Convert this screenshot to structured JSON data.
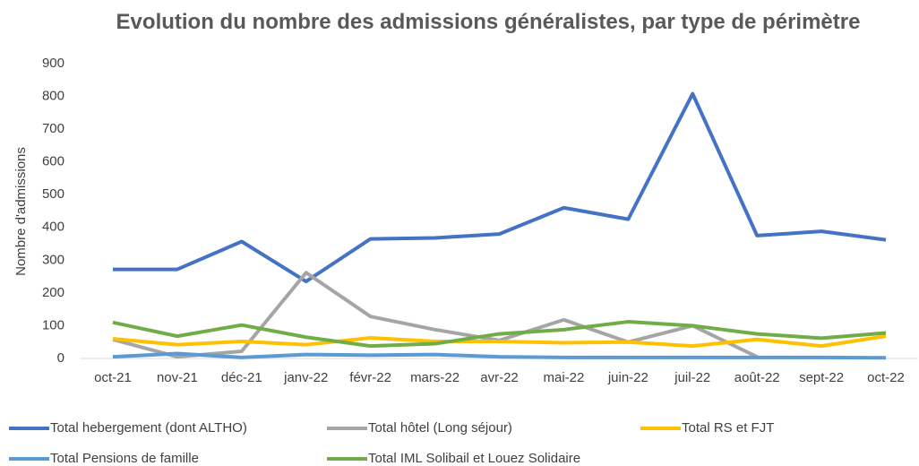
{
  "chart_data": {
    "type": "line",
    "title": "Evolution du nombre des admissions généralistes, par type de périmètre",
    "y_label": "Nombre d'admissions",
    "categories": [
      "oct-21",
      "nov-21",
      "déc-21",
      "janv-22",
      "févr-22",
      "mars-22",
      "avr-22",
      "mai-22",
      "juin-22",
      "juil-22",
      "août-22",
      "sept-22",
      "oct-22"
    ],
    "series": [
      {
        "name": "Total hebergement (dont ALTHO)",
        "color": "#4472c4",
        "values": [
          272,
          272,
          357,
          235,
          365,
          368,
          380,
          460,
          425,
          808,
          375,
          388,
          362
        ]
      },
      {
        "name": "Total hôtel (Long séjour)",
        "color": "#a5a5a5",
        "values": [
          58,
          5,
          22,
          262,
          128,
          88,
          55,
          118,
          50,
          100,
          5,
          null,
          null
        ]
      },
      {
        "name": "Total RS et FJT",
        "color": "#ffc000",
        "values": [
          60,
          42,
          52,
          42,
          63,
          52,
          52,
          48,
          50,
          38,
          58,
          38,
          68
        ]
      },
      {
        "name": "Total Pensions de famille",
        "color": "#5b9bd5",
        "values": [
          5,
          15,
          3,
          12,
          10,
          12,
          5,
          3,
          3,
          3,
          3,
          3,
          2
        ]
      },
      {
        "name": "Total IML Solibail et Louez Solidaire",
        "color": "#70ad47",
        "values": [
          110,
          68,
          102,
          65,
          38,
          45,
          75,
          88,
          112,
          100,
          75,
          62,
          78
        ]
      }
    ],
    "ylim": [
      0,
      900
    ],
    "yticks": [
      0,
      100,
      200,
      300,
      400,
      500,
      600,
      700,
      800,
      900
    ],
    "grid": false
  }
}
